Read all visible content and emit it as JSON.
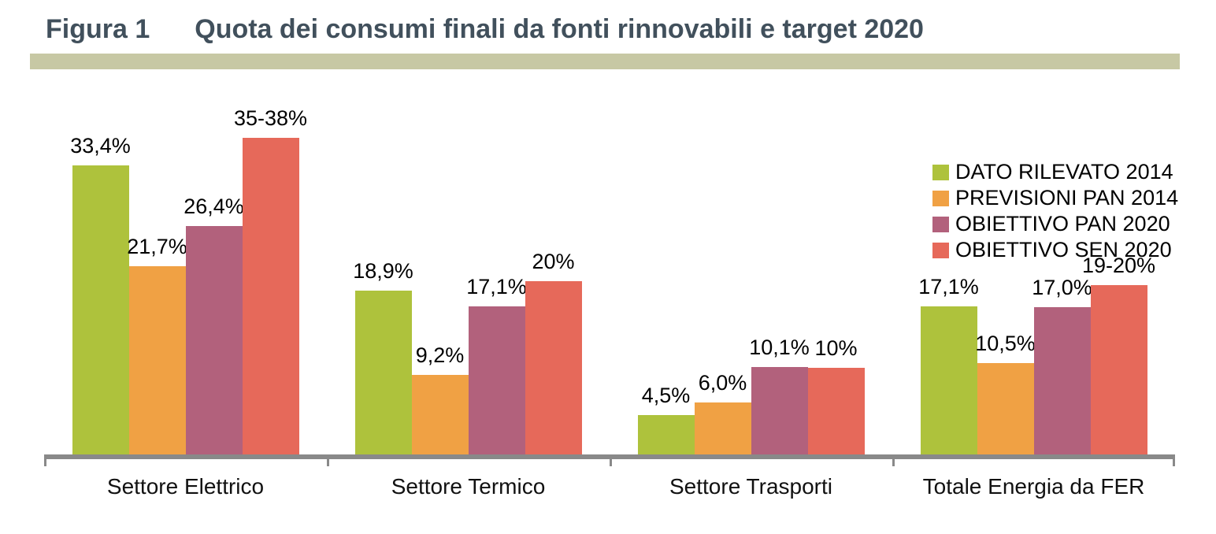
{
  "figure": {
    "label": "Figura 1",
    "title": "Quota dei consumi finali da fonti rinnovabili e target 2020",
    "title_color": "#41505c",
    "band_color": "#c7c8a4"
  },
  "chart_data": {
    "type": "bar",
    "title": "Quota dei consumi finali da fonti rinnovabili e target 2020",
    "categories": [
      "Settore Elettrico",
      "Settore Termico",
      "Settore Trasporti",
      "Totale Energia da FER"
    ],
    "series": [
      {
        "name": "DATO RILEVATO 2014",
        "color": "#aec23c",
        "values": [
          33.4,
          18.9,
          4.5,
          17.1
        ],
        "labels": [
          "33,4%",
          "18,9%",
          "4,5%",
          "17,1%"
        ]
      },
      {
        "name": "PREVISIONI PAN 2014",
        "color": "#f0a144",
        "values": [
          21.7,
          9.2,
          6.0,
          10.5
        ],
        "labels": [
          "21,7%",
          "9,2%",
          "6,0%",
          "10,5%"
        ]
      },
      {
        "name": "OBIETTIVO PAN 2020",
        "color": "#b2617c",
        "values": [
          26.4,
          17.1,
          10.1,
          17.0
        ],
        "labels": [
          "26,4%",
          "17,1%",
          "10,1%",
          "17,0%"
        ]
      },
      {
        "name": "OBIETTIVO SEN 2020",
        "color": "#e6695a",
        "values": [
          36.5,
          20.0,
          10.0,
          19.5
        ],
        "labels": [
          "35-38%",
          "20%",
          "10%",
          "19-20%"
        ]
      }
    ],
    "xlabel": "",
    "ylabel": "",
    "ylim": [
      0,
      40
    ],
    "grid": false,
    "y_axis_visible": false,
    "data_labels": true,
    "legend_position": "top-right",
    "axis_color": "#898989"
  }
}
